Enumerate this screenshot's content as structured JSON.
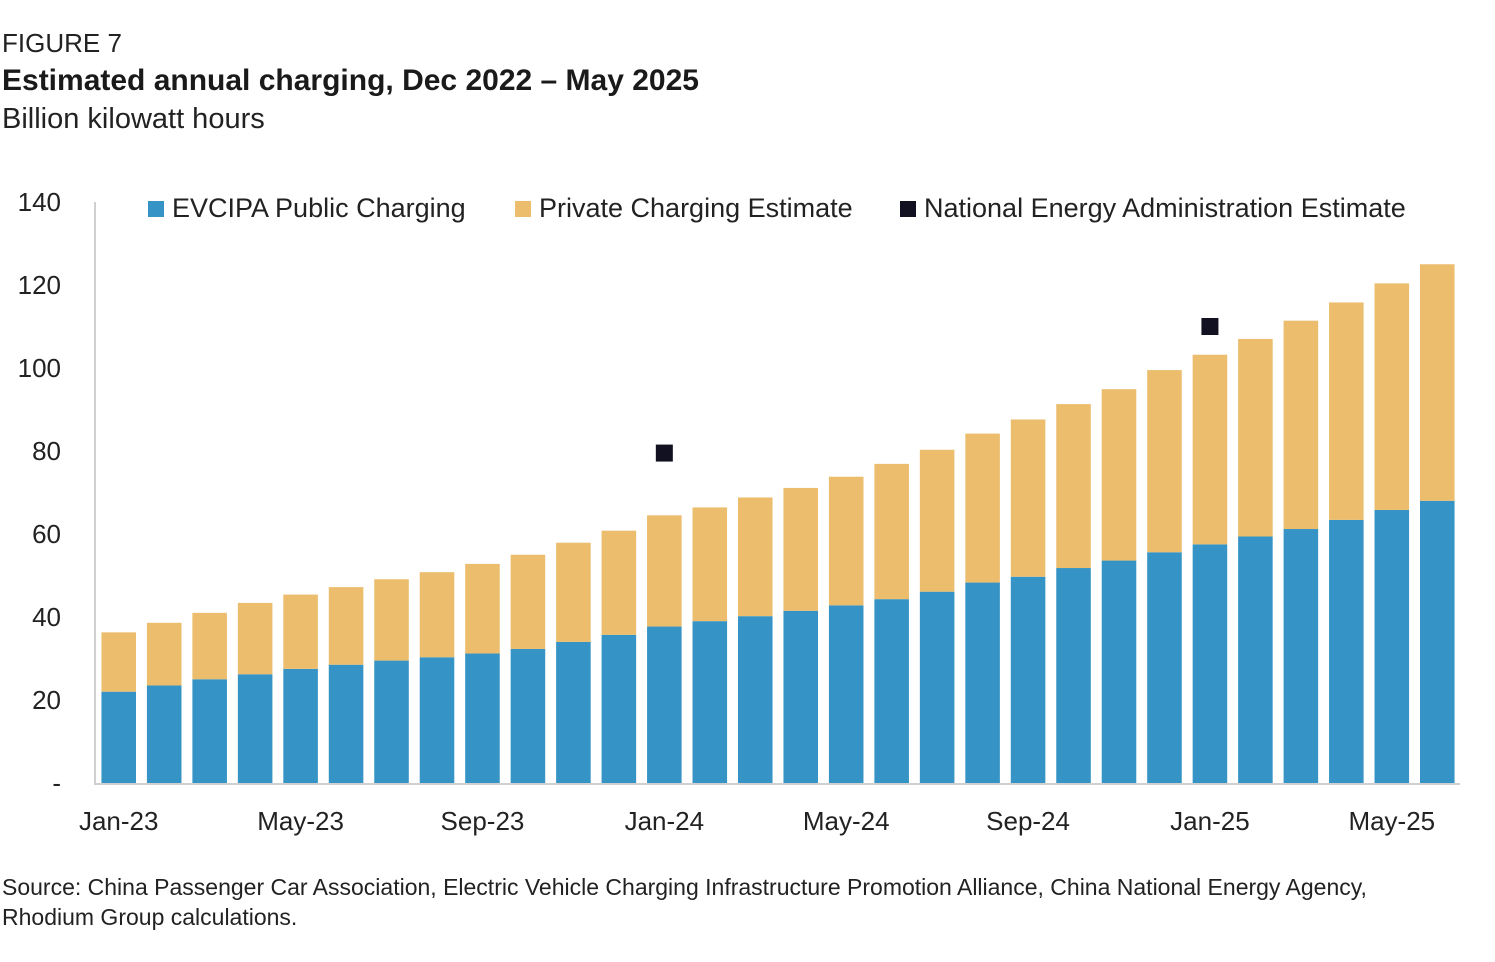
{
  "header": {
    "figure_label": "FIGURE 7",
    "title": "Estimated annual charging, Dec 2022 – May 2025",
    "subtitle": "Billion kilowatt hours"
  },
  "footer": {
    "source": "Source: China Passenger Car Association, Electric Vehicle Charging Infrastructure Promotion Alliance, China National Energy Agency, Rhodium Group calculations."
  },
  "colors": {
    "public": "#3594c5",
    "private": "#ebbd6d",
    "nea": "#111122",
    "axis": "#d0d0d0"
  },
  "chart_data": {
    "type": "bar",
    "stacked": true,
    "title": "Estimated annual charging, Dec 2022 – May 2025",
    "subtitle": "Billion kilowatt hours",
    "xlabel": "",
    "ylabel": "",
    "ylim": [
      0,
      140
    ],
    "yticks": [
      0,
      20,
      40,
      60,
      80,
      100,
      120,
      140
    ],
    "ytick_labels": [
      "-",
      "20",
      "40",
      "60",
      "80",
      "100",
      "120",
      "140"
    ],
    "grid": false,
    "legend_position": "top",
    "categories": [
      "Dec-22",
      "Jan-23",
      "Feb-23",
      "Mar-23",
      "Apr-23",
      "May-23",
      "Jun-23",
      "Jul-23",
      "Aug-23",
      "Sep-23",
      "Oct-23",
      "Nov-23",
      "Dec-23",
      "Jan-24",
      "Feb-24",
      "Mar-24",
      "Apr-24",
      "May-24",
      "Jun-24",
      "Jul-24",
      "Aug-24",
      "Sep-24",
      "Oct-24",
      "Nov-24",
      "Dec-24",
      "Jan-25",
      "Feb-25",
      "Mar-25",
      "Apr-25",
      "May-25"
    ],
    "x_tick_labels": [
      {
        "index": 0.5,
        "label": "Jan-23"
      },
      {
        "index": 4.5,
        "label": "May-23"
      },
      {
        "index": 8.5,
        "label": "Sep-23"
      },
      {
        "index": 12.5,
        "label": "Jan-24"
      },
      {
        "index": 16.5,
        "label": "May-24"
      },
      {
        "index": 20.5,
        "label": "Sep-24"
      },
      {
        "index": 24.5,
        "label": "Jan-25"
      },
      {
        "index": 28.5,
        "label": "May-25"
      }
    ],
    "series": [
      {
        "name": "EVCIPA Public Charging",
        "kind": "stacked-bar",
        "values": [
          22.0,
          23.5,
          25.0,
          26.2,
          27.5,
          28.5,
          29.5,
          30.3,
          31.2,
          32.3,
          34.0,
          35.7,
          37.7,
          39.0,
          40.2,
          41.5,
          42.8,
          44.3,
          46.1,
          48.3,
          49.7,
          51.8,
          53.6,
          55.6,
          57.5,
          59.4,
          61.2,
          63.4,
          65.8,
          68.0
        ],
        "color": "#3594c5"
      },
      {
        "name": "Private Charging Estimate",
        "kind": "stacked-bar",
        "values": [
          14.3,
          15.1,
          16.0,
          17.2,
          17.9,
          18.7,
          19.6,
          20.5,
          21.6,
          22.7,
          23.9,
          25.1,
          26.8,
          27.4,
          28.6,
          29.6,
          31.0,
          32.6,
          34.2,
          35.9,
          37.9,
          39.5,
          41.3,
          43.9,
          45.7,
          47.6,
          50.2,
          52.4,
          54.6,
          57.0
        ],
        "color": "#ebbd6d"
      },
      {
        "name": "National Energy Administration Estimate",
        "kind": "marker",
        "points": [
          {
            "category": "Dec-23",
            "value": 79.5
          },
          {
            "category": "Dec-24",
            "value": 110.0
          }
        ],
        "color": "#111122"
      }
    ]
  }
}
